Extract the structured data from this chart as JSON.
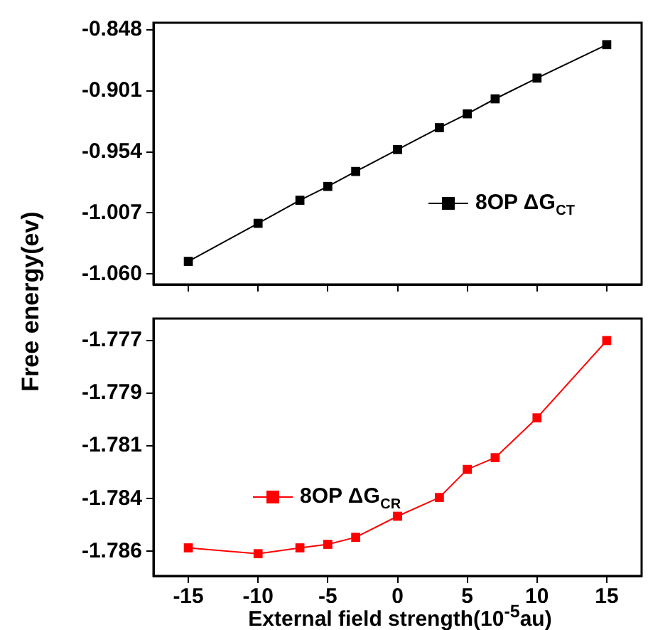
{
  "chart_data": [
    {
      "type": "line",
      "x": [
        -15,
        -10,
        -7,
        -5,
        -3,
        0,
        3,
        5,
        7,
        10,
        15
      ],
      "series": [
        {
          "name": "8OP ΔG$_{CT}$",
          "color": "#000000",
          "values": [
            -1.049,
            -1.016,
            -0.996,
            -0.984,
            -0.971,
            -0.952,
            -0.933,
            -0.921,
            -0.908,
            -0.89,
            -0.861
          ]
        }
      ],
      "xlim": [
        -17.5,
        17.5
      ],
      "xticks": [
        -15,
        -10,
        -5,
        0,
        5,
        10,
        15
      ],
      "ylim": [
        -1.069,
        -0.842
      ],
      "yticks": [
        -0.848,
        -0.901,
        -0.954,
        -1.007,
        {
          "value": -1.06,
          "label": "-1.060"
        }
      ],
      "tick_labels": "y",
      "legend": "right",
      "marker": "square",
      "line_style": "solid",
      "grid": false
    },
    {
      "type": "line",
      "x": [
        -15,
        -10,
        -7,
        -5,
        -3,
        0,
        3,
        5,
        7,
        10,
        15
      ],
      "series": [
        {
          "name": "8OP ΔG$_{CR}$",
          "color": "#ff0000",
          "values": [
            -1.78585,
            -1.7861,
            -1.78585,
            -1.7857,
            -1.7854,
            -1.7845,
            -1.7837,
            -1.7825,
            -1.782,
            -1.7803,
            -1.777
          ]
        }
      ],
      "xlabel": "External field strength(10$^{-5}$au)",
      "ylabel": "Free energy(ev)",
      "xlim": [
        -17.5,
        17.5
      ],
      "xticks": [
        -15,
        -10,
        -5,
        0,
        5,
        10,
        15
      ],
      "ylim": [
        -1.78705,
        -1.77606
      ],
      "yticks": [
        {
          "value": -1.777,
          "label": "-1.777"
        },
        {
          "value": -1.77925,
          "label": "-1.779"
        },
        {
          "value": -1.7815,
          "label": "-1.781"
        },
        {
          "value": -1.78375,
          "label": "-1.784"
        },
        {
          "value": -1.786,
          "label": "-1.786"
        }
      ],
      "legend": "left",
      "marker": "square",
      "line_style": "solid",
      "grid": false
    }
  ]
}
